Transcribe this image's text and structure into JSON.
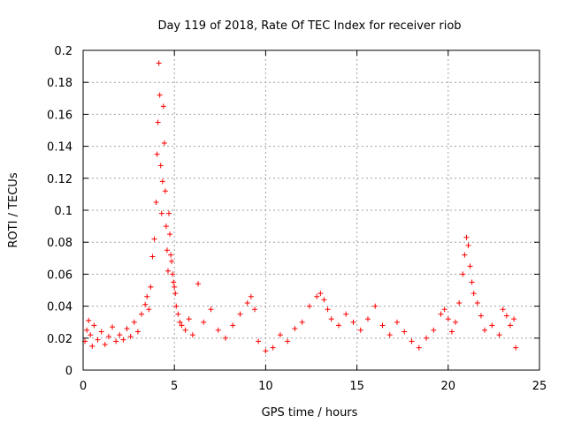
{
  "chart_data": {
    "type": "scatter",
    "title": "Day 119 of 2018, Rate Of TEC Index for receiver riob",
    "xlabel": "GPS time / hours",
    "ylabel": "ROTI / TECUs",
    "xlim": [
      0,
      25
    ],
    "ylim": [
      0,
      0.2
    ],
    "x_ticks": [
      0,
      5,
      10,
      15,
      20,
      25
    ],
    "x_tick_labels": [
      "0",
      "5",
      "10",
      "15",
      "20",
      "25"
    ],
    "y_ticks": [
      0,
      0.02,
      0.04,
      0.06,
      0.08,
      0.1,
      0.12,
      0.14,
      0.16,
      0.18,
      0.2
    ],
    "y_tick_labels": [
      "0",
      "0.02",
      "0.04",
      "0.06",
      "0.08",
      "0.1",
      "0.12",
      "0.14",
      "0.16",
      "0.18",
      "0.2"
    ],
    "grid": true,
    "marker": "+",
    "series": [
      {
        "name": "ROTI",
        "color": "#ff0000",
        "x": [
          0.1,
          0.2,
          0.3,
          0.4,
          0.5,
          0.6,
          0.8,
          1.0,
          1.2,
          1.4,
          1.6,
          1.8,
          2.0,
          2.2,
          2.4,
          2.6,
          2.8,
          3.0,
          3.2,
          3.4,
          3.5,
          3.6,
          3.7,
          3.8,
          3.9,
          4.0,
          4.05,
          4.1,
          4.15,
          4.2,
          4.25,
          4.3,
          4.35,
          4.4,
          4.45,
          4.5,
          4.55,
          4.6,
          4.65,
          4.7,
          4.75,
          4.8,
          4.85,
          4.9,
          4.95,
          5.0,
          5.05,
          5.1,
          5.2,
          5.3,
          5.4,
          5.6,
          5.8,
          6.0,
          6.3,
          6.6,
          7.0,
          7.4,
          7.8,
          8.2,
          8.6,
          9.0,
          9.2,
          9.4,
          9.6,
          10.0,
          10.4,
          10.8,
          11.2,
          11.6,
          12.0,
          12.4,
          12.8,
          13.0,
          13.2,
          13.4,
          13.6,
          14.0,
          14.4,
          14.8,
          15.2,
          15.6,
          16.0,
          16.4,
          16.8,
          17.2,
          17.6,
          18.0,
          18.4,
          18.8,
          19.2,
          19.6,
          19.8,
          20.0,
          20.2,
          20.4,
          20.6,
          20.8,
          20.9,
          21.0,
          21.1,
          21.2,
          21.3,
          21.4,
          21.6,
          21.8,
          22.0,
          22.4,
          22.8,
          23.0,
          23.2,
          23.4,
          23.6,
          23.7
        ],
        "y": [
          0.018,
          0.025,
          0.031,
          0.022,
          0.015,
          0.028,
          0.019,
          0.024,
          0.016,
          0.021,
          0.027,
          0.018,
          0.022,
          0.019,
          0.026,
          0.021,
          0.03,
          0.024,
          0.035,
          0.041,
          0.046,
          0.038,
          0.052,
          0.071,
          0.082,
          0.105,
          0.135,
          0.155,
          0.192,
          0.172,
          0.128,
          0.098,
          0.118,
          0.165,
          0.142,
          0.112,
          0.09,
          0.075,
          0.062,
          0.098,
          0.085,
          0.072,
          0.068,
          0.06,
          0.055,
          0.052,
          0.048,
          0.04,
          0.035,
          0.03,
          0.028,
          0.025,
          0.032,
          0.022,
          0.054,
          0.03,
          0.038,
          0.025,
          0.02,
          0.028,
          0.035,
          0.042,
          0.046,
          0.038,
          0.018,
          0.012,
          0.014,
          0.022,
          0.018,
          0.026,
          0.03,
          0.04,
          0.046,
          0.048,
          0.044,
          0.038,
          0.032,
          0.028,
          0.035,
          0.03,
          0.025,
          0.032,
          0.04,
          0.028,
          0.022,
          0.03,
          0.024,
          0.018,
          0.014,
          0.02,
          0.025,
          0.035,
          0.038,
          0.032,
          0.024,
          0.03,
          0.042,
          0.06,
          0.072,
          0.083,
          0.078,
          0.065,
          0.055,
          0.048,
          0.042,
          0.034,
          0.025,
          0.028,
          0.022,
          0.038,
          0.034,
          0.028,
          0.032,
          0.014
        ]
      }
    ]
  }
}
